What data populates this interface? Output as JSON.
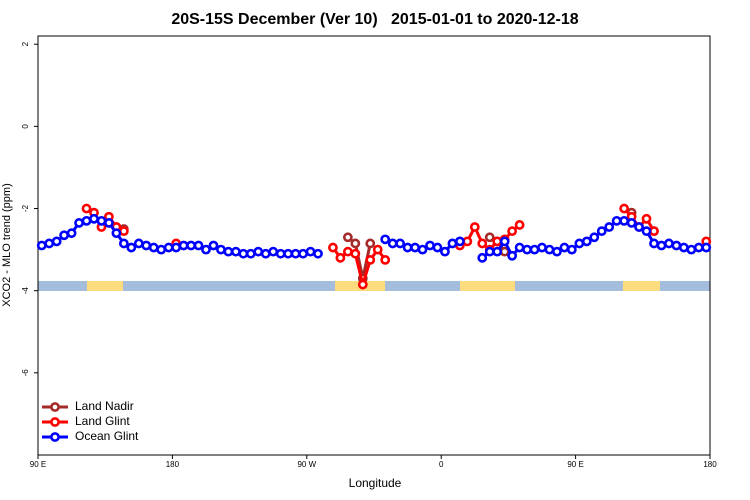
{
  "chart_data": {
    "type": "line",
    "title": "20S-15S December (Ver 10)   2015-01-01 to 2020-12-18",
    "x_label": "Longitude",
    "y_label": "XCO2 - MLO trend (ppm)",
    "xlim": [
      90,
      540
    ],
    "ylim": [
      -8,
      2.2
    ],
    "xticks": [
      {
        "value": 90,
        "label": "90 E"
      },
      {
        "value": 180,
        "label": "180"
      },
      {
        "value": 270,
        "label": "90 W"
      },
      {
        "value": 360,
        "label": "0"
      },
      {
        "value": 450,
        "label": "90 E"
      },
      {
        "value": 540,
        "label": "180"
      }
    ],
    "yticks": [
      2,
      0,
      -2,
      -4,
      -6
    ],
    "legend": "bottom-left",
    "surface_colors": {
      "ocean": "#a5bddc",
      "land": "#fddc7e"
    },
    "land_regions": [
      [
        122.8,
        146.9
      ],
      [
        288.9,
        322.4
      ],
      [
        372.6,
        409.4
      ],
      [
        481.7,
        506.5
      ]
    ],
    "x": [
      92.5,
      97.5,
      102.5,
      107.5,
      112.5,
      117.5,
      122.5,
      127.5,
      132.5,
      137.5,
      142.5,
      147.5,
      152.5,
      157.5,
      162.5,
      167.5,
      172.5,
      177.5,
      182.5,
      187.5,
      192.5,
      197.5,
      202.5,
      207.5,
      212.5,
      217.5,
      222.5,
      227.5,
      232.5,
      237.5,
      242.5,
      247.5,
      252.5,
      257.5,
      262.5,
      267.5,
      272.5,
      277.5,
      282.5,
      287.5,
      292.5,
      297.5,
      302.5,
      307.5,
      312.5,
      317.5,
      322.5,
      327.5,
      332.5,
      337.5,
      342.5,
      347.5,
      352.5,
      357.5,
      362.5,
      367.5,
      372.5,
      377.5,
      382.5,
      387.5,
      392.5,
      397.5,
      402.5,
      407.5,
      412.5,
      417.5,
      422.5,
      427.5,
      432.5,
      437.5,
      442.5,
      447.5,
      452.5,
      457.5,
      462.5,
      467.5,
      472.5,
      477.5,
      482.5,
      487.5,
      492.5,
      497.5,
      502.5,
      507.5,
      512.5,
      517.5,
      522.5,
      527.5,
      532.5,
      537.5
    ],
    "series": [
      {
        "name": "Land Nadir",
        "color": "#a52a2a",
        "values": [
          null,
          null,
          null,
          null,
          null,
          null,
          null,
          null,
          null,
          null,
          -2.45,
          -2.5,
          null,
          null,
          null,
          null,
          null,
          null,
          null,
          null,
          null,
          null,
          null,
          null,
          null,
          null,
          null,
          null,
          null,
          null,
          null,
          null,
          null,
          null,
          null,
          null,
          null,
          null,
          null,
          null,
          null,
          -2.7,
          -2.85,
          -3.7,
          -2.85,
          null,
          null,
          null,
          null,
          null,
          null,
          null,
          null,
          null,
          null,
          null,
          null,
          null,
          null,
          null,
          -2.7,
          -2.8,
          -3.05,
          null,
          null,
          null,
          null,
          null,
          null,
          null,
          null,
          null,
          null,
          null,
          null,
          null,
          null,
          null,
          null,
          -2.1,
          null,
          null,
          -2.55,
          null,
          null,
          null,
          null,
          null,
          null,
          null
        ]
      },
      {
        "name": "Land Glint",
        "color": "#ff0000",
        "values": [
          null,
          null,
          null,
          null,
          null,
          null,
          -2.0,
          -2.1,
          -2.45,
          -2.2,
          -2.45,
          -2.55,
          null,
          null,
          null,
          null,
          null,
          null,
          -2.85,
          null,
          null,
          null,
          null,
          null,
          null,
          null,
          null,
          null,
          null,
          null,
          null,
          null,
          null,
          null,
          null,
          null,
          null,
          null,
          null,
          -2.95,
          -3.2,
          -3.05,
          -3.1,
          -3.85,
          -3.25,
          -3.0,
          -3.25,
          null,
          null,
          null,
          null,
          null,
          null,
          null,
          null,
          null,
          -2.9,
          -2.8,
          -2.45,
          -2.85,
          -3.0,
          -2.8,
          -2.75,
          -2.55,
          -2.4,
          null,
          null,
          null,
          null,
          null,
          null,
          null,
          null,
          null,
          null,
          null,
          null,
          null,
          -2.0,
          -2.2,
          -2.45,
          -2.25,
          -2.55,
          null,
          null,
          null,
          null,
          null,
          null,
          -2.8
        ]
      },
      {
        "name": "Ocean Glint",
        "color": "#0000ff",
        "values": [
          -2.9,
          -2.85,
          -2.8,
          -2.65,
          -2.6,
          -2.35,
          -2.3,
          -2.25,
          -2.3,
          -2.35,
          -2.6,
          -2.85,
          -2.95,
          -2.85,
          -2.9,
          -2.95,
          -3.0,
          -2.95,
          -2.95,
          -2.9,
          -2.9,
          -2.9,
          -3.0,
          -2.9,
          -3.0,
          -3.05,
          -3.05,
          -3.1,
          -3.1,
          -3.05,
          -3.1,
          -3.05,
          -3.1,
          -3.1,
          -3.1,
          -3.1,
          -3.05,
          -3.1,
          null,
          null,
          null,
          null,
          null,
          null,
          null,
          null,
          -2.75,
          -2.85,
          -2.85,
          -2.95,
          -2.95,
          -3.0,
          -2.9,
          -2.95,
          -3.05,
          -2.85,
          -2.8,
          null,
          null,
          -3.2,
          -3.05,
          -3.05,
          -2.8,
          -3.15,
          -2.95,
          -3.0,
          -3.0,
          -2.95,
          -3.0,
          -3.05,
          -2.95,
          -3.0,
          -2.85,
          -2.8,
          -2.7,
          -2.55,
          -2.45,
          -2.3,
          -2.3,
          -2.35,
          -2.45,
          -2.55,
          -2.85,
          -2.9,
          -2.85,
          -2.9,
          -2.95,
          -3.0,
          -2.95,
          -2.95
        ]
      }
    ]
  }
}
